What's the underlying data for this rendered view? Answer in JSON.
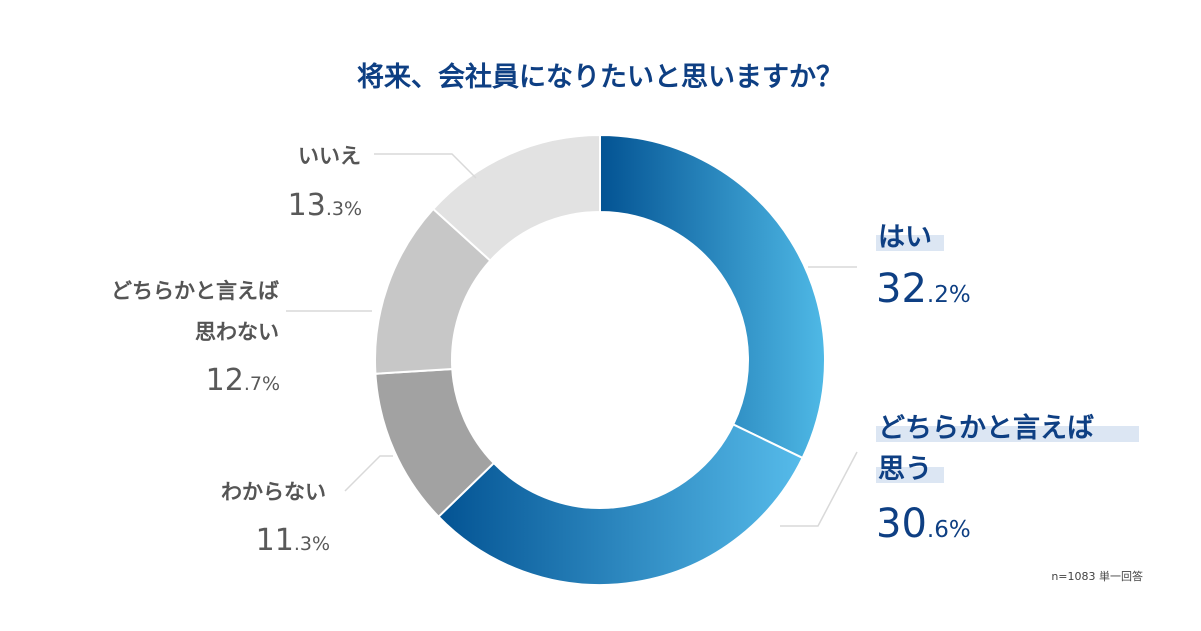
{
  "chart_data": {
    "type": "pie",
    "title": "将来、会社員になりたいと思いますか？",
    "note": "n=1083 単一回答",
    "slices": [
      {
        "label": "はい",
        "value": 32.2,
        "int": "32",
        "dec": ".2%",
        "color_start": "#035393",
        "color_end": "#4fb9e6"
      },
      {
        "label": "どちらかと言えば思う",
        "value": 30.6,
        "int": "30",
        "dec": ".6%",
        "color_start": "#035393",
        "color_end": "#56bbea"
      },
      {
        "label": "わからない",
        "value": 11.3,
        "int": "11",
        "dec": ".3%",
        "color": "#a2a2a2"
      },
      {
        "label": "どちらかと言えば思わない",
        "value": 12.7,
        "int": "12",
        "dec": ".7%",
        "color": "#c7c7c7"
      },
      {
        "label": "いいえ",
        "value": 13.3,
        "int": "13",
        "dec": ".3%",
        "color": "#e2e2e2"
      }
    ],
    "label_lines": {
      "s1": [
        "どちらかと言えば",
        "思う"
      ],
      "s3": [
        "どちらかと言えば",
        "思わない"
      ]
    }
  }
}
